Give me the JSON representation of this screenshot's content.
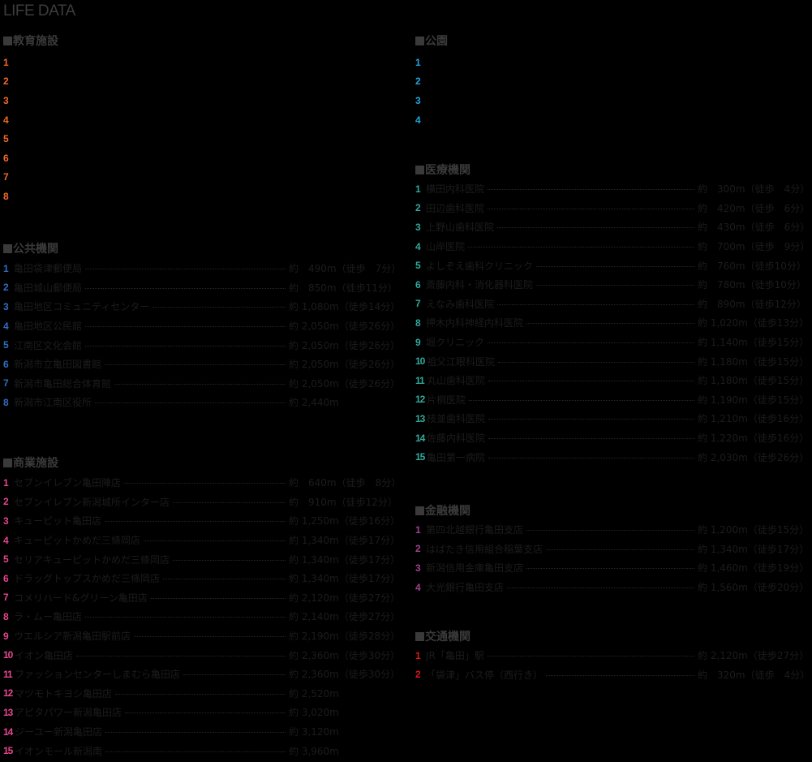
{
  "page_title": "LIFE DATA",
  "colors": {
    "education": "#f26b2a",
    "public": "#2f6fc0",
    "commercial": "#e5468f",
    "park": "#1fa6e0",
    "medical": "#31a89a",
    "finance": "#a1418f",
    "transport": "#e0141c",
    "heading": "#3a3a3a",
    "background": "#000000"
  },
  "sections": {
    "education": {
      "title": "教育施設",
      "items": [
        {
          "num": "1",
          "name": "",
          "distance": ""
        },
        {
          "num": "2",
          "name": "",
          "distance": ""
        },
        {
          "num": "3",
          "name": "",
          "distance": ""
        },
        {
          "num": "4",
          "name": "",
          "distance": ""
        },
        {
          "num": "5",
          "name": "",
          "distance": ""
        },
        {
          "num": "6",
          "name": "",
          "distance": ""
        },
        {
          "num": "7",
          "name": "",
          "distance": ""
        },
        {
          "num": "8",
          "name": "",
          "distance": ""
        }
      ]
    },
    "public": {
      "title": "公共機関",
      "items": [
        {
          "num": "1",
          "name": "亀田袋津郵便局",
          "distance": "約　490m（徒歩　7分）"
        },
        {
          "num": "2",
          "name": "亀田城山郵便局",
          "distance": "約　850m（徒歩11分）"
        },
        {
          "num": "3",
          "name": "亀田地区コミュニティセンター",
          "distance": "約 1,080m（徒歩14分）"
        },
        {
          "num": "4",
          "name": "亀田地区公民館",
          "distance": "約 2,050m（徒歩26分）"
        },
        {
          "num": "5",
          "name": "江南区文化会館",
          "distance": "約 2,050m（徒歩26分）"
        },
        {
          "num": "6",
          "name": "新潟市立亀田図書館",
          "distance": "約 2,050m（徒歩26分）"
        },
        {
          "num": "7",
          "name": "新潟市亀田総合体育館",
          "distance": "約 2,050m（徒歩26分）"
        },
        {
          "num": "8",
          "name": "新潟市江南区役所",
          "distance": "約 2,440m"
        }
      ]
    },
    "commercial": {
      "title": "商業施設",
      "items": [
        {
          "num": "1",
          "name": "セブンイレブン亀田陣店",
          "distance": "約　640m（徒歩　8分）"
        },
        {
          "num": "2",
          "name": "セブンイレブン新潟城所インター店",
          "distance": "約　910m（徒歩12分）"
        },
        {
          "num": "3",
          "name": "キューピット亀田店",
          "distance": "約 1,250m（徒歩16分）"
        },
        {
          "num": "4",
          "name": "キューピットかめだ三條岡店",
          "distance": "約 1,340m（徒歩17分）"
        },
        {
          "num": "5",
          "name": "セリアキューピットかめだ三條岡店",
          "distance": "約 1,340m（徒歩17分）"
        },
        {
          "num": "6",
          "name": "ドラッグトップスかめだ三條岡店",
          "distance": "約 1,340m（徒歩17分）"
        },
        {
          "num": "7",
          "name": "コメリハード&グリーン亀田店",
          "distance": "約 2,120m（徒歩27分）"
        },
        {
          "num": "8",
          "name": "ラ・ムー亀田店",
          "distance": "約 2,140m（徒歩27分）"
        },
        {
          "num": "9",
          "name": "ウエルシア新潟亀田駅前店",
          "distance": "約 2,190m（徒歩28分）"
        },
        {
          "num": "10",
          "name": "イオン亀田店",
          "distance": "約 2,360m（徒歩30分）"
        },
        {
          "num": "11",
          "name": "ファッションセンターしまむら亀田店",
          "distance": "約 2,360m（徒歩30分）"
        },
        {
          "num": "12",
          "name": "マツモトキヨシ亀田店",
          "distance": "約 2,520m"
        },
        {
          "num": "13",
          "name": "アピタパワー新潟亀田店",
          "distance": "約 3,020m"
        },
        {
          "num": "14",
          "name": "ジーユー新潟亀田店",
          "distance": "約 3,120m"
        },
        {
          "num": "15",
          "name": "イオンモール新潟南",
          "distance": "約 3,960m"
        }
      ]
    },
    "park": {
      "title": "公園",
      "items": [
        {
          "num": "1",
          "name": "",
          "distance": ""
        },
        {
          "num": "2",
          "name": "",
          "distance": ""
        },
        {
          "num": "3",
          "name": "",
          "distance": ""
        },
        {
          "num": "4",
          "name": "",
          "distance": ""
        }
      ]
    },
    "medical": {
      "title": "医療機関",
      "items": [
        {
          "num": "1",
          "name": "横田内科医院",
          "distance": "約　300m（徒歩　4分）"
        },
        {
          "num": "2",
          "name": "田辺歯科医院",
          "distance": "約　420m（徒歩　6分）"
        },
        {
          "num": "3",
          "name": "上野山歯科医院",
          "distance": "約　430m（徒歩　6分）"
        },
        {
          "num": "4",
          "name": "山岸医院",
          "distance": "約　700m（徒歩　9分）"
        },
        {
          "num": "5",
          "name": "よしぞえ歯科クリニック",
          "distance": "約　760m（徒歩10分）"
        },
        {
          "num": "6",
          "name": "斎藤内科・消化器科医院",
          "distance": "約　780m（徒歩10分）"
        },
        {
          "num": "7",
          "name": "えなみ歯科医院",
          "distance": "約　890m（徒歩12分）"
        },
        {
          "num": "8",
          "name": "押木内科神経内科医院",
          "distance": "約 1,020m（徒歩13分）"
        },
        {
          "num": "9",
          "name": "堀クリニック",
          "distance": "約 1,140m（徒歩15分）"
        },
        {
          "num": "10",
          "name": "祖父江眼科医院",
          "distance": "約 1,180m（徒歩15分）"
        },
        {
          "num": "11",
          "name": "丸山歯科医院",
          "distance": "約 1,180m（徒歩15分）"
        },
        {
          "num": "12",
          "name": "片桐医院",
          "distance": "約 1,190m（徒歩15分）"
        },
        {
          "num": "13",
          "name": "枝並歯科医院",
          "distance": "約 1,210m（徒歩16分）"
        },
        {
          "num": "14",
          "name": "佐藤内科医院",
          "distance": "約 1,220m（徒歩16分）"
        },
        {
          "num": "15",
          "name": "亀田第一病院",
          "distance": "約 2,030m（徒歩26分）"
        }
      ]
    },
    "finance": {
      "title": "金融機関",
      "items": [
        {
          "num": "1",
          "name": "第四北越銀行亀田支店",
          "distance": "約 1,200m（徒歩15分）"
        },
        {
          "num": "2",
          "name": "はばたき信用組合稲葉支店",
          "distance": "約 1,340m（徒歩17分）"
        },
        {
          "num": "3",
          "name": "新潟信用金庫亀田支店",
          "distance": "約 1,460m（徒歩19分）"
        },
        {
          "num": "4",
          "name": "大光銀行亀田支店",
          "distance": "約 1,560m（徒歩20分）"
        }
      ]
    },
    "transport": {
      "title": "交通機関",
      "items": [
        {
          "num": "1",
          "name": "JR「亀田」駅",
          "distance": "約 2,120m（徒歩27分）"
        },
        {
          "num": "2",
          "name": "「袋津」バス停（西行き）",
          "distance": "約　320m（徒歩　4分）"
        }
      ]
    }
  }
}
